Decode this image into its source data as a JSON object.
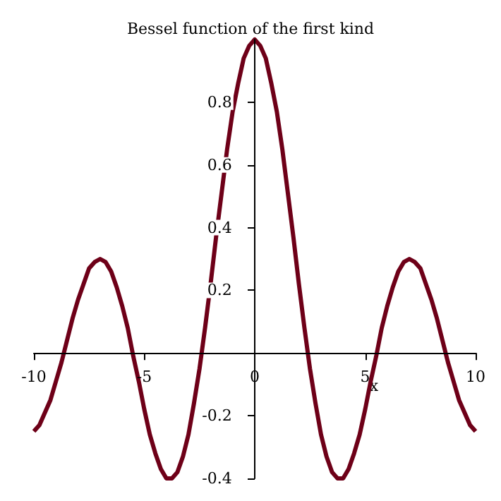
{
  "chart_data": {
    "type": "line",
    "title": "Bessel function of the first kind",
    "xlabel": "x",
    "x": [
      -10,
      -9.75,
      -9.5,
      -9.25,
      -9,
      -8.75,
      -8.5,
      -8.25,
      -8,
      -7.75,
      -7.5,
      -7.25,
      -7,
      -6.75,
      -6.5,
      -6.25,
      -6,
      -5.75,
      -5.5,
      -5.25,
      -5,
      -4.75,
      -4.5,
      -4.25,
      -4,
      -3.75,
      -3.5,
      -3.25,
      -3,
      -2.75,
      -2.5,
      -2.25,
      -2,
      -1.75,
      -1.5,
      -1.25,
      -1,
      -0.75,
      -0.5,
      -0.25,
      0,
      0.25,
      0.5,
      0.75,
      1,
      1.25,
      1.5,
      1.75,
      2,
      2.25,
      2.5,
      2.75,
      3,
      3.25,
      3.5,
      3.75,
      4,
      4.25,
      4.5,
      4.75,
      5,
      5.25,
      5.5,
      5.75,
      6,
      6.25,
      6.5,
      6.75,
      7,
      7.25,
      7.5,
      7.75,
      8,
      8.25,
      8.5,
      8.75,
      9,
      9.25,
      9.5,
      9.75,
      10
    ],
    "series": [
      {
        "color": "#6e0018",
        "values": [
          -0.25,
          -0.23,
          -0.19,
          -0.15,
          -0.09,
          -0.03,
          0.04,
          0.11,
          0.17,
          0.22,
          0.27,
          0.29,
          0.3,
          0.29,
          0.26,
          0.21,
          0.15,
          0.08,
          -0.01,
          -0.09,
          -0.18,
          -0.26,
          -0.32,
          -0.37,
          -0.4,
          -0.4,
          -0.38,
          -0.33,
          -0.26,
          -0.16,
          -0.05,
          0.08,
          0.22,
          0.37,
          0.51,
          0.65,
          0.77,
          0.86,
          0.94,
          0.98,
          1,
          0.98,
          0.94,
          0.86,
          0.77,
          0.65,
          0.51,
          0.37,
          0.22,
          0.08,
          -0.05,
          -0.16,
          -0.26,
          -0.33,
          -0.38,
          -0.4,
          -0.4,
          -0.37,
          -0.32,
          -0.26,
          -0.18,
          -0.09,
          -0.01,
          0.08,
          0.15,
          0.21,
          0.26,
          0.29,
          0.3,
          0.29,
          0.27,
          0.22,
          0.17,
          0.11,
          0.04,
          -0.03,
          -0.09,
          -0.15,
          -0.19,
          -0.23,
          -0.25
        ]
      }
    ],
    "xlim": [
      -10,
      10
    ],
    "xticks": [
      -10,
      -5,
      0,
      5,
      10
    ],
    "ylim": [
      -0.4,
      1
    ],
    "yticks": [
      -0.4,
      -0.2,
      0.2,
      0.4,
      0.6,
      0.8
    ],
    "marker": "none",
    "line_style": "solid"
  }
}
